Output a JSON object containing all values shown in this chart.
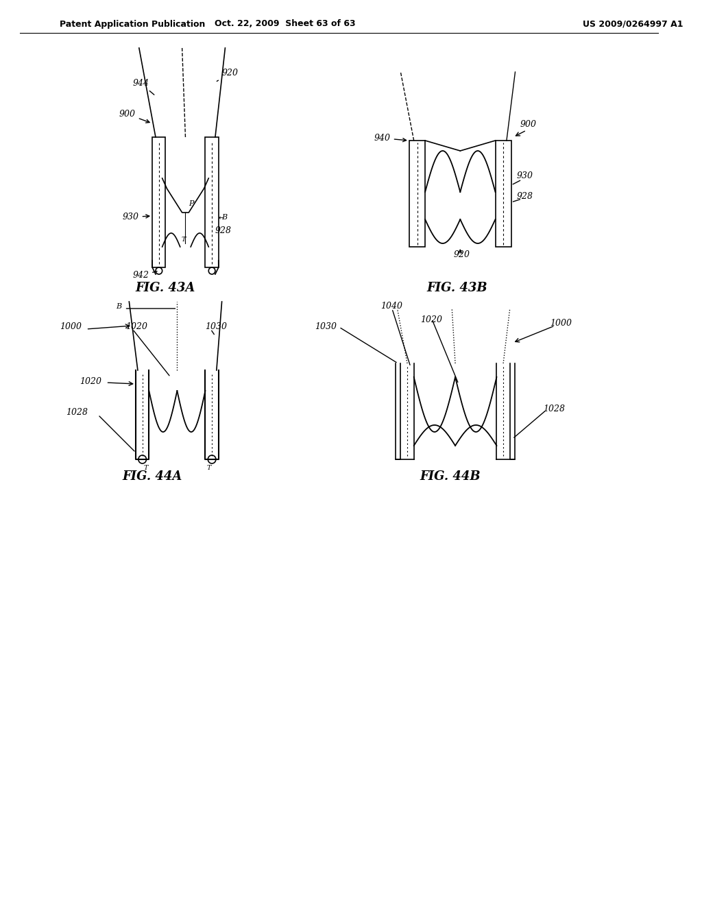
{
  "title_left": "Patent Application Publication",
  "title_mid": "Oct. 22, 2009  Sheet 63 of 63",
  "title_right": "US 2009/0264997 A1",
  "bg_color": "#ffffff",
  "line_color": "#000000",
  "fig43a_caption": "FIG. 43A",
  "fig43b_caption": "FIG. 43B",
  "fig44a_caption": "FIG. 44A",
  "fig44b_caption": "FIG. 44B"
}
